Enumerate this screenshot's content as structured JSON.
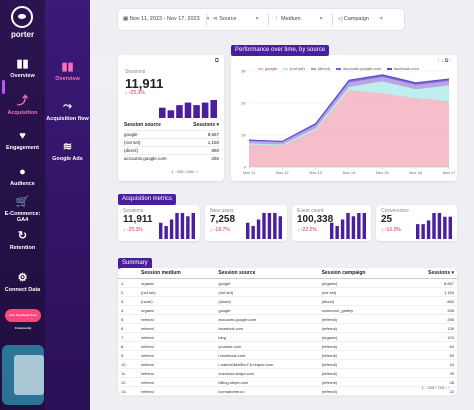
{
  "brand": "porter",
  "nav": [
    {
      "label": "Overview",
      "icon": "bar-chart-icon"
    },
    {
      "label": "Acquisition",
      "icon": "acquisition-icon"
    },
    {
      "label": "Engagement",
      "icon": "heart-icon"
    },
    {
      "label": "Audience",
      "icon": "users-icon"
    },
    {
      "label": "E-Commerce: GA4",
      "icon": "cart-icon"
    },
    {
      "label": "Retention",
      "icon": "refresh-icon"
    },
    {
      "label": "Connect Data",
      "icon": "gear-icon"
    }
  ],
  "promo": "Join Facebook Free Community",
  "subnav": [
    {
      "label": "Overview",
      "icon": "bar-chart-icon"
    },
    {
      "label": "Acquisition flow",
      "icon": "flow-icon"
    },
    {
      "label": "Google Ads",
      "icon": "coins-icon"
    }
  ],
  "filters": {
    "date": "Nov 11, 2023 - Nov 17, 2023",
    "source": "Source",
    "medium": "Medium",
    "campaign": "Campaign"
  },
  "sessions_card": {
    "label": "Sessions",
    "value": "11,911",
    "change": "↓ -25.3%",
    "col1": "Session source",
    "col2": "Sessions ▾",
    "rows": [
      [
        "google",
        "8,667"
      ],
      [
        "(not set)",
        "1,150"
      ],
      [
        "(direct)",
        "860"
      ],
      [
        "accounts.google.com",
        "256"
      ]
    ],
    "pager": "1 - 100 / 105"
  },
  "perf": {
    "title": "Performance over time, by source"
  },
  "chart_data": [
    {
      "type": "area",
      "title": "Performance over time, by source",
      "x": [
        "Nov 11",
        "Nov 12",
        "Nov 13",
        "Nov 14",
        "Nov 15",
        "Nov 16",
        "Nov 17"
      ],
      "ylim": [
        0,
        3000
      ],
      "yticks": [
        "0",
        "1K",
        "2K",
        "3K"
      ],
      "series": [
        {
          "name": "google",
          "values": [
            700,
            660,
            1150,
            2400,
            2300,
            2150,
            2050
          ],
          "color": "#f5b6c4"
        },
        {
          "name": "(not set)",
          "values": [
            40,
            40,
            60,
            100,
            380,
            280,
            500
          ],
          "color": "#b8ecec"
        },
        {
          "name": "(direct)",
          "values": [
            80,
            80,
            100,
            150,
            140,
            140,
            140
          ],
          "color": "#b49ae0"
        },
        {
          "name": "accounts.google.com",
          "values": [
            20,
            20,
            40,
            50,
            45,
            50,
            50
          ],
          "color": "#7c5ad0"
        },
        {
          "name": "facebook.com",
          "values": [
            5,
            5,
            10,
            15,
            20,
            15,
            15
          ],
          "color": "#4a4ad0"
        }
      ]
    },
    {
      "type": "bar",
      "values": [
        4,
        3,
        5,
        6,
        5,
        6,
        7
      ]
    },
    {
      "type": "bar",
      "values": [
        5,
        4,
        6,
        8,
        8,
        7,
        8
      ]
    },
    {
      "type": "bar",
      "values": [
        5,
        4,
        6,
        8,
        8,
        8,
        7
      ]
    },
    {
      "type": "bar",
      "values": [
        5,
        4,
        6,
        8,
        7,
        8,
        8
      ]
    },
    {
      "type": "bar",
      "values": [
        4,
        4,
        5,
        7,
        7,
        6,
        6
      ]
    }
  ],
  "acq": {
    "title": "Acquisition metrics",
    "metrics": [
      {
        "label": "Sessions",
        "value": "11,911",
        "change": "↓ -25.3%"
      },
      {
        "label": "New users",
        "value": "7,258",
        "change": "↓ -18.7%"
      },
      {
        "label": "Event count",
        "value": "100,338",
        "change": "↓ -22.2%"
      },
      {
        "label": "Conversions",
        "value": "25",
        "change": "↓ -16.3%"
      }
    ]
  },
  "summary": {
    "title": "Summary",
    "headers": [
      "Session medium",
      "Session source",
      "Session campaign",
      "Sessions ▾"
    ],
    "rows": [
      [
        "1.",
        "organic",
        "google",
        "(organic)",
        "8,657"
      ],
      [
        "2.",
        "(not set)",
        "(not set)",
        "(not set)",
        "1,150"
      ],
      [
        "3.",
        "(none)",
        "(direct)",
        "(direct)",
        "860"
      ],
      [
        "4.",
        "organic",
        "google",
        "connector_gallery",
        "256"
      ],
      [
        "5.",
        "referral",
        "accounts.google.com",
        "(referral)",
        "256"
      ],
      [
        "6.",
        "referral",
        "facebook.com",
        "(referral)",
        "126"
      ],
      [
        "7.",
        "referral",
        "bing",
        "(organic)",
        "103"
      ],
      [
        "8.",
        "referral",
        "youtube.com",
        "(referral)",
        "64"
      ],
      [
        "9.",
        "referral",
        "l.facebook.com",
        "(referral)",
        "53"
      ],
      [
        "10.",
        "referral",
        "r-sabcx0kek5hn7.b.reaper.com",
        "(referral)",
        "44"
      ],
      [
        "11.",
        "referral",
        "checkout.stripe.com",
        "(referral)",
        "39"
      ],
      [
        "12.",
        "referral",
        "billing.stripe.com",
        "(referral)",
        "28"
      ],
      [
        "13.",
        "referral",
        "lovmarketer.co",
        "(referral)",
        "22"
      ]
    ],
    "pager": "1 - 100 / 720"
  }
}
